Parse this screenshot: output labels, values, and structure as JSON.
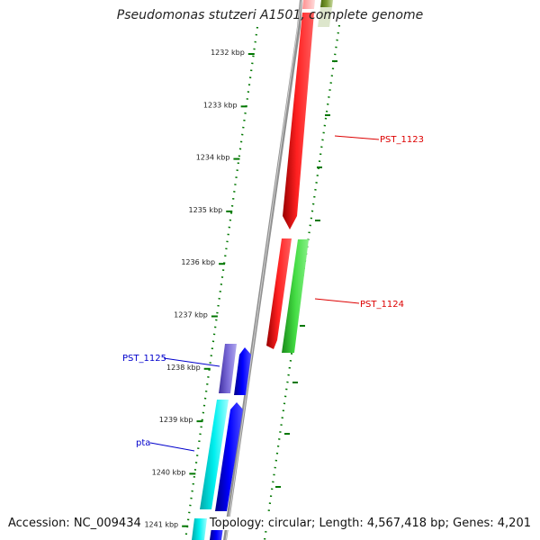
{
  "title": "Pseudomonas stutzeri A1501, complete genome",
  "footer": {
    "accession": "Accession: NC_009434",
    "topology": "Topology: circular; Length: 4,567,418 bp; Genes: 4,201"
  },
  "ticks": [
    "1232 kbp",
    "1233 kbp",
    "1234 kbp",
    "1235 kbp",
    "1236 kbp",
    "1237 kbp",
    "1238 kbp",
    "1239 kbp",
    "1240 kbp",
    "1241 kbp"
  ],
  "genes": [
    {
      "label": "PST_1123",
      "color": "#dd0000"
    },
    {
      "label": "PST_1124",
      "color": "#dd0000"
    },
    {
      "label": "PST_1125",
      "color": "#0000cc"
    },
    {
      "label": "pta",
      "color": "#0000cc"
    }
  ],
  "colors": {
    "red": "#ff0000",
    "green": "#33cc33",
    "olive": "#6b8e23",
    "purple": "#7060cc",
    "blue": "#0000ee",
    "cyan": "#00e5e5",
    "track": "#888888",
    "ticks": "#006600"
  }
}
